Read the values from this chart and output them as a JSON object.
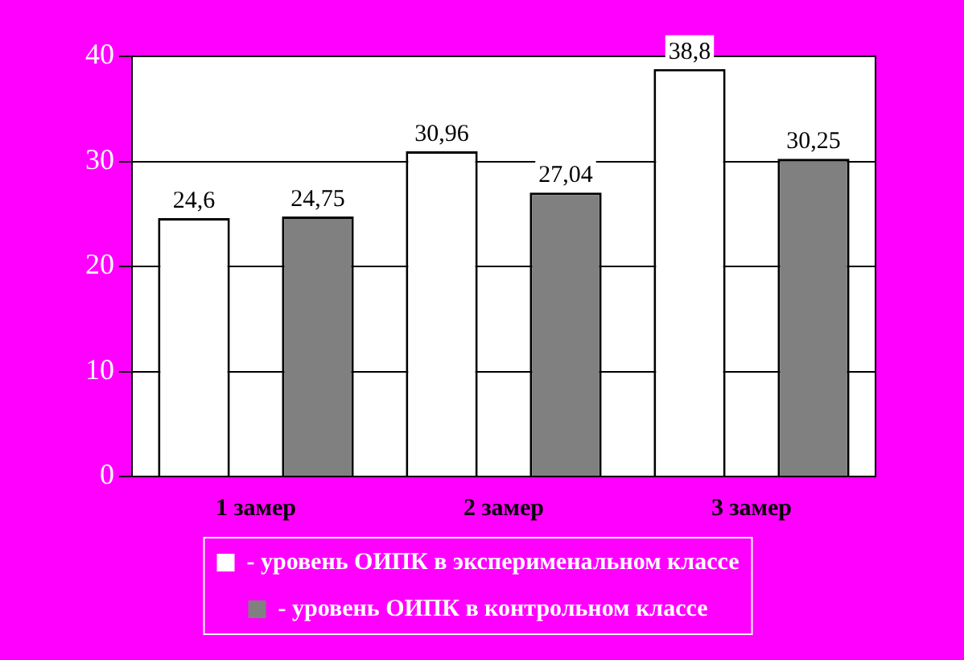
{
  "chart_data": {
    "type": "bar",
    "categories": [
      "1 замер",
      "2 замер",
      "3 замер"
    ],
    "series": [
      {
        "name": "- уровень ОИПК в эксперименальном классе",
        "color": "#ffffff",
        "values": [
          24.6,
          30.96,
          38.8
        ],
        "value_labels": [
          "24,6",
          "30,96",
          "38,8"
        ]
      },
      {
        "name": "- уровень ОИПК в контрольном классе",
        "color": "#808080",
        "values": [
          24.75,
          27.04,
          30.25
        ],
        "value_labels": [
          "24,75",
          "27,04",
          "30,25"
        ]
      }
    ],
    "ylim": [
      0,
      40
    ],
    "yticks": [
      0,
      10,
      20,
      30,
      40
    ],
    "grid": "y",
    "legend": "bottom"
  }
}
